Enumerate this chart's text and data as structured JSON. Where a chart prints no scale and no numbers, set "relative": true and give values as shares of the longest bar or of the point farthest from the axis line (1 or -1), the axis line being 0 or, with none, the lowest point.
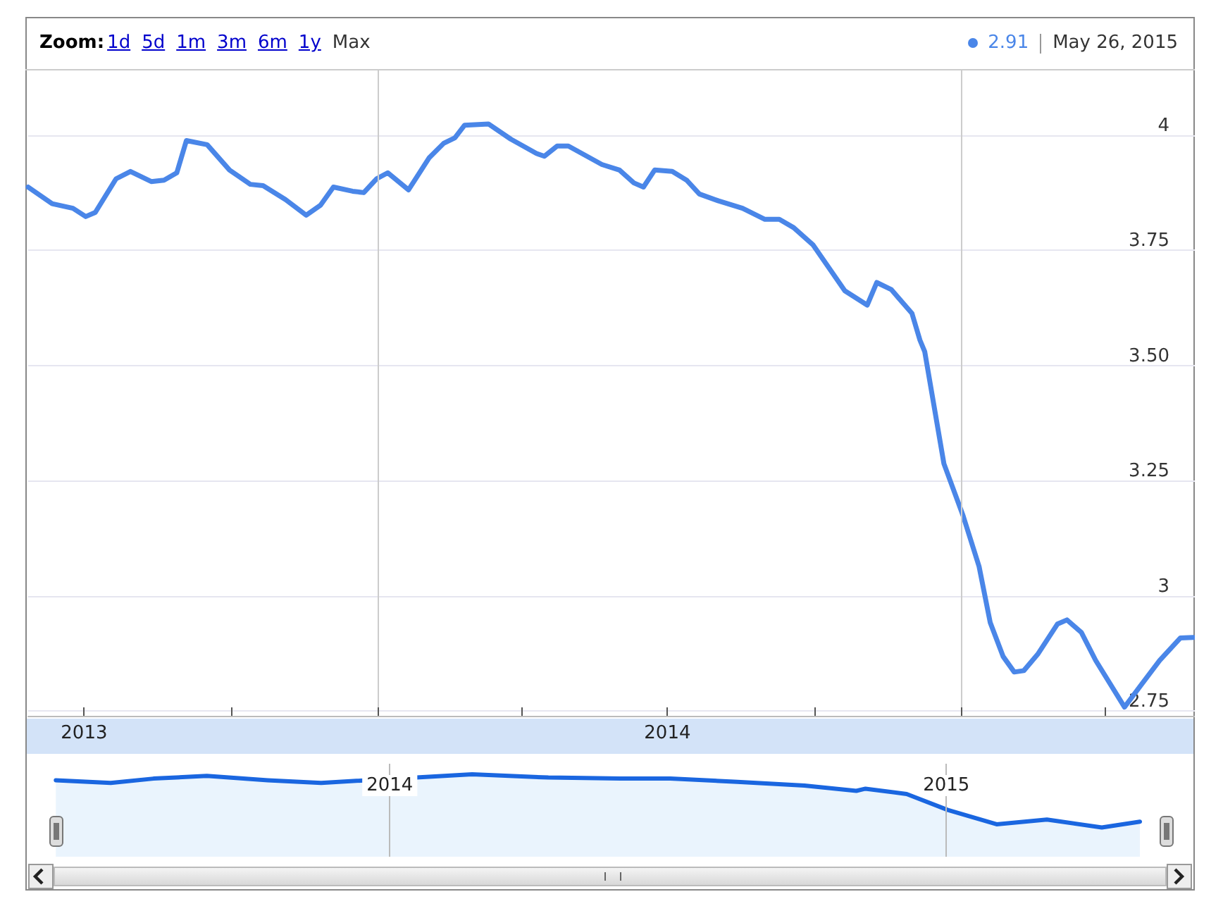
{
  "chart_data": [
    {
      "type": "line",
      "annotations": [
        "Zoom:",
        "1d",
        "5d",
        "1m",
        "3m",
        "6m",
        "1y",
        "Max",
        "2.91",
        "May 26, 2015"
      ],
      "x": [
        "2013-05-27",
        "2013-06-11",
        "2013-06-24",
        "2013-07-02",
        "2013-07-08",
        "2013-07-21",
        "2013-07-30",
        "2013-08-12",
        "2013-08-20",
        "2013-08-28",
        "2013-09-03",
        "2013-09-16",
        "2013-09-30",
        "2013-10-13",
        "2013-10-21",
        "2013-11-04",
        "2013-11-17",
        "2013-11-26",
        "2013-12-04",
        "2013-12-16",
        "2013-12-23",
        "2013-12-31",
        "2014-01-07",
        "2014-01-20",
        "2014-02-02",
        "2014-02-11",
        "2014-02-18",
        "2014-02-24",
        "2014-03-11",
        "2014-03-25",
        "2014-04-10",
        "2014-04-15",
        "2014-04-23",
        "2014-04-30",
        "2014-05-21",
        "2014-06-01",
        "2014-06-10",
        "2014-06-16",
        "2014-06-23",
        "2014-07-04",
        "2014-07-13",
        "2014-07-21",
        "2014-08-02",
        "2014-08-17",
        "2014-08-31",
        "2014-09-09",
        "2014-09-18",
        "2014-09-30",
        "2014-10-11",
        "2014-10-20",
        "2014-11-03",
        "2014-11-09",
        "2014-11-18",
        "2014-12-01",
        "2014-12-06",
        "2014-12-09",
        "2014-12-21",
        "2015-01-02",
        "2015-01-12",
        "2015-01-19",
        "2015-01-27",
        "2015-02-03",
        "2015-02-09",
        "2015-02-18",
        "2015-03-02",
        "2015-03-08",
        "2015-03-17",
        "2015-03-26",
        "2015-04-13",
        "2015-04-23",
        "2015-05-05",
        "2015-05-18",
        "2015-05-26"
      ],
      "values": [
        3.887,
        3.851,
        3.841,
        3.823,
        3.832,
        3.905,
        3.921,
        3.899,
        3.902,
        3.918,
        3.988,
        3.979,
        3.924,
        3.893,
        3.89,
        3.86,
        3.826,
        3.848,
        3.887,
        3.878,
        3.875,
        3.905,
        3.918,
        3.881,
        3.951,
        3.982,
        3.994,
        4.021,
        4.024,
        3.991,
        3.96,
        3.954,
        3.976,
        3.976,
        3.936,
        3.924,
        3.896,
        3.887,
        3.924,
        3.921,
        3.902,
        3.872,
        3.857,
        3.841,
        3.817,
        3.817,
        3.799,
        3.762,
        3.707,
        3.662,
        3.631,
        3.68,
        3.665,
        3.613,
        3.555,
        3.53,
        3.287,
        3.174,
        3.064,
        2.942,
        2.869,
        2.835,
        2.838,
        2.875,
        2.939,
        2.948,
        2.921,
        2.86,
        2.759,
        2.805,
        2.86,
        2.909,
        2.91
      ],
      "color": "#4a86e8",
      "xlim": [
        "2013-05-27",
        "2015-05-27"
      ],
      "xticks": [
        {
          "value": "2013-07-01",
          "label": "2013"
        },
        {
          "value": "2013-10-01",
          "label": null
        },
        {
          "value": "2014-01-01",
          "label": null
        },
        {
          "value": "2014-04-01",
          "label": null
        },
        {
          "value": "2014-07-01",
          "label": "2014"
        },
        {
          "value": "2014-10-01",
          "label": null
        },
        {
          "value": "2015-01-01",
          "label": null
        },
        {
          "value": "2015-04-01",
          "label": null
        }
      ],
      "ylim": [
        2.74,
        4.14
      ],
      "yticks": [
        2.75,
        3,
        3.25,
        {
          "value": 3.5,
          "label": "3.50"
        },
        3.75,
        4
      ],
      "grid": "y",
      "ref_lines": [
        {
          "axis": "x",
          "value": "2014-01-01",
          "color": "#cccccc"
        },
        {
          "axis": "x",
          "value": "2015-01-01",
          "color": "#cccccc"
        }
      ],
      "marker": "none"
    },
    {
      "type": "area",
      "relative": true,
      "x": [
        "2013-05-27",
        "2013-07-02",
        "2013-07-30",
        "2013-09-03",
        "2013-10-13",
        "2013-11-17",
        "2014-02-24",
        "2014-04-15",
        "2014-06-01",
        "2014-07-04",
        "2014-08-17",
        "2014-09-30",
        "2014-11-03",
        "2014-11-09",
        "2014-12-06",
        "2015-01-02",
        "2015-02-03",
        "2015-03-08",
        "2015-04-13",
        "2015-05-08"
      ],
      "values": [
        0.89,
        0.84,
        0.92,
        0.97,
        0.89,
        0.84,
        1.0,
        0.94,
        0.92,
        0.92,
        0.86,
        0.79,
        0.69,
        0.73,
        0.63,
        0.33,
        0.06,
        0.15,
        0,
        0.11
      ],
      "color": "#1a66e0",
      "xlim": [
        "2013-05-07",
        "2015-06-13"
      ],
      "xticks": [
        {
          "value": "2014-01-01",
          "label": "2014"
        },
        {
          "value": "2015-01-01",
          "label": "2015"
        }
      ],
      "tick_labels": "x",
      "ref_lines": [
        {
          "axis": "x",
          "value": "2014-01-01",
          "color": "#bbbbbb"
        },
        {
          "axis": "x",
          "value": "2015-01-01",
          "color": "#bbbbbb"
        }
      ],
      "marker": "none"
    }
  ]
}
